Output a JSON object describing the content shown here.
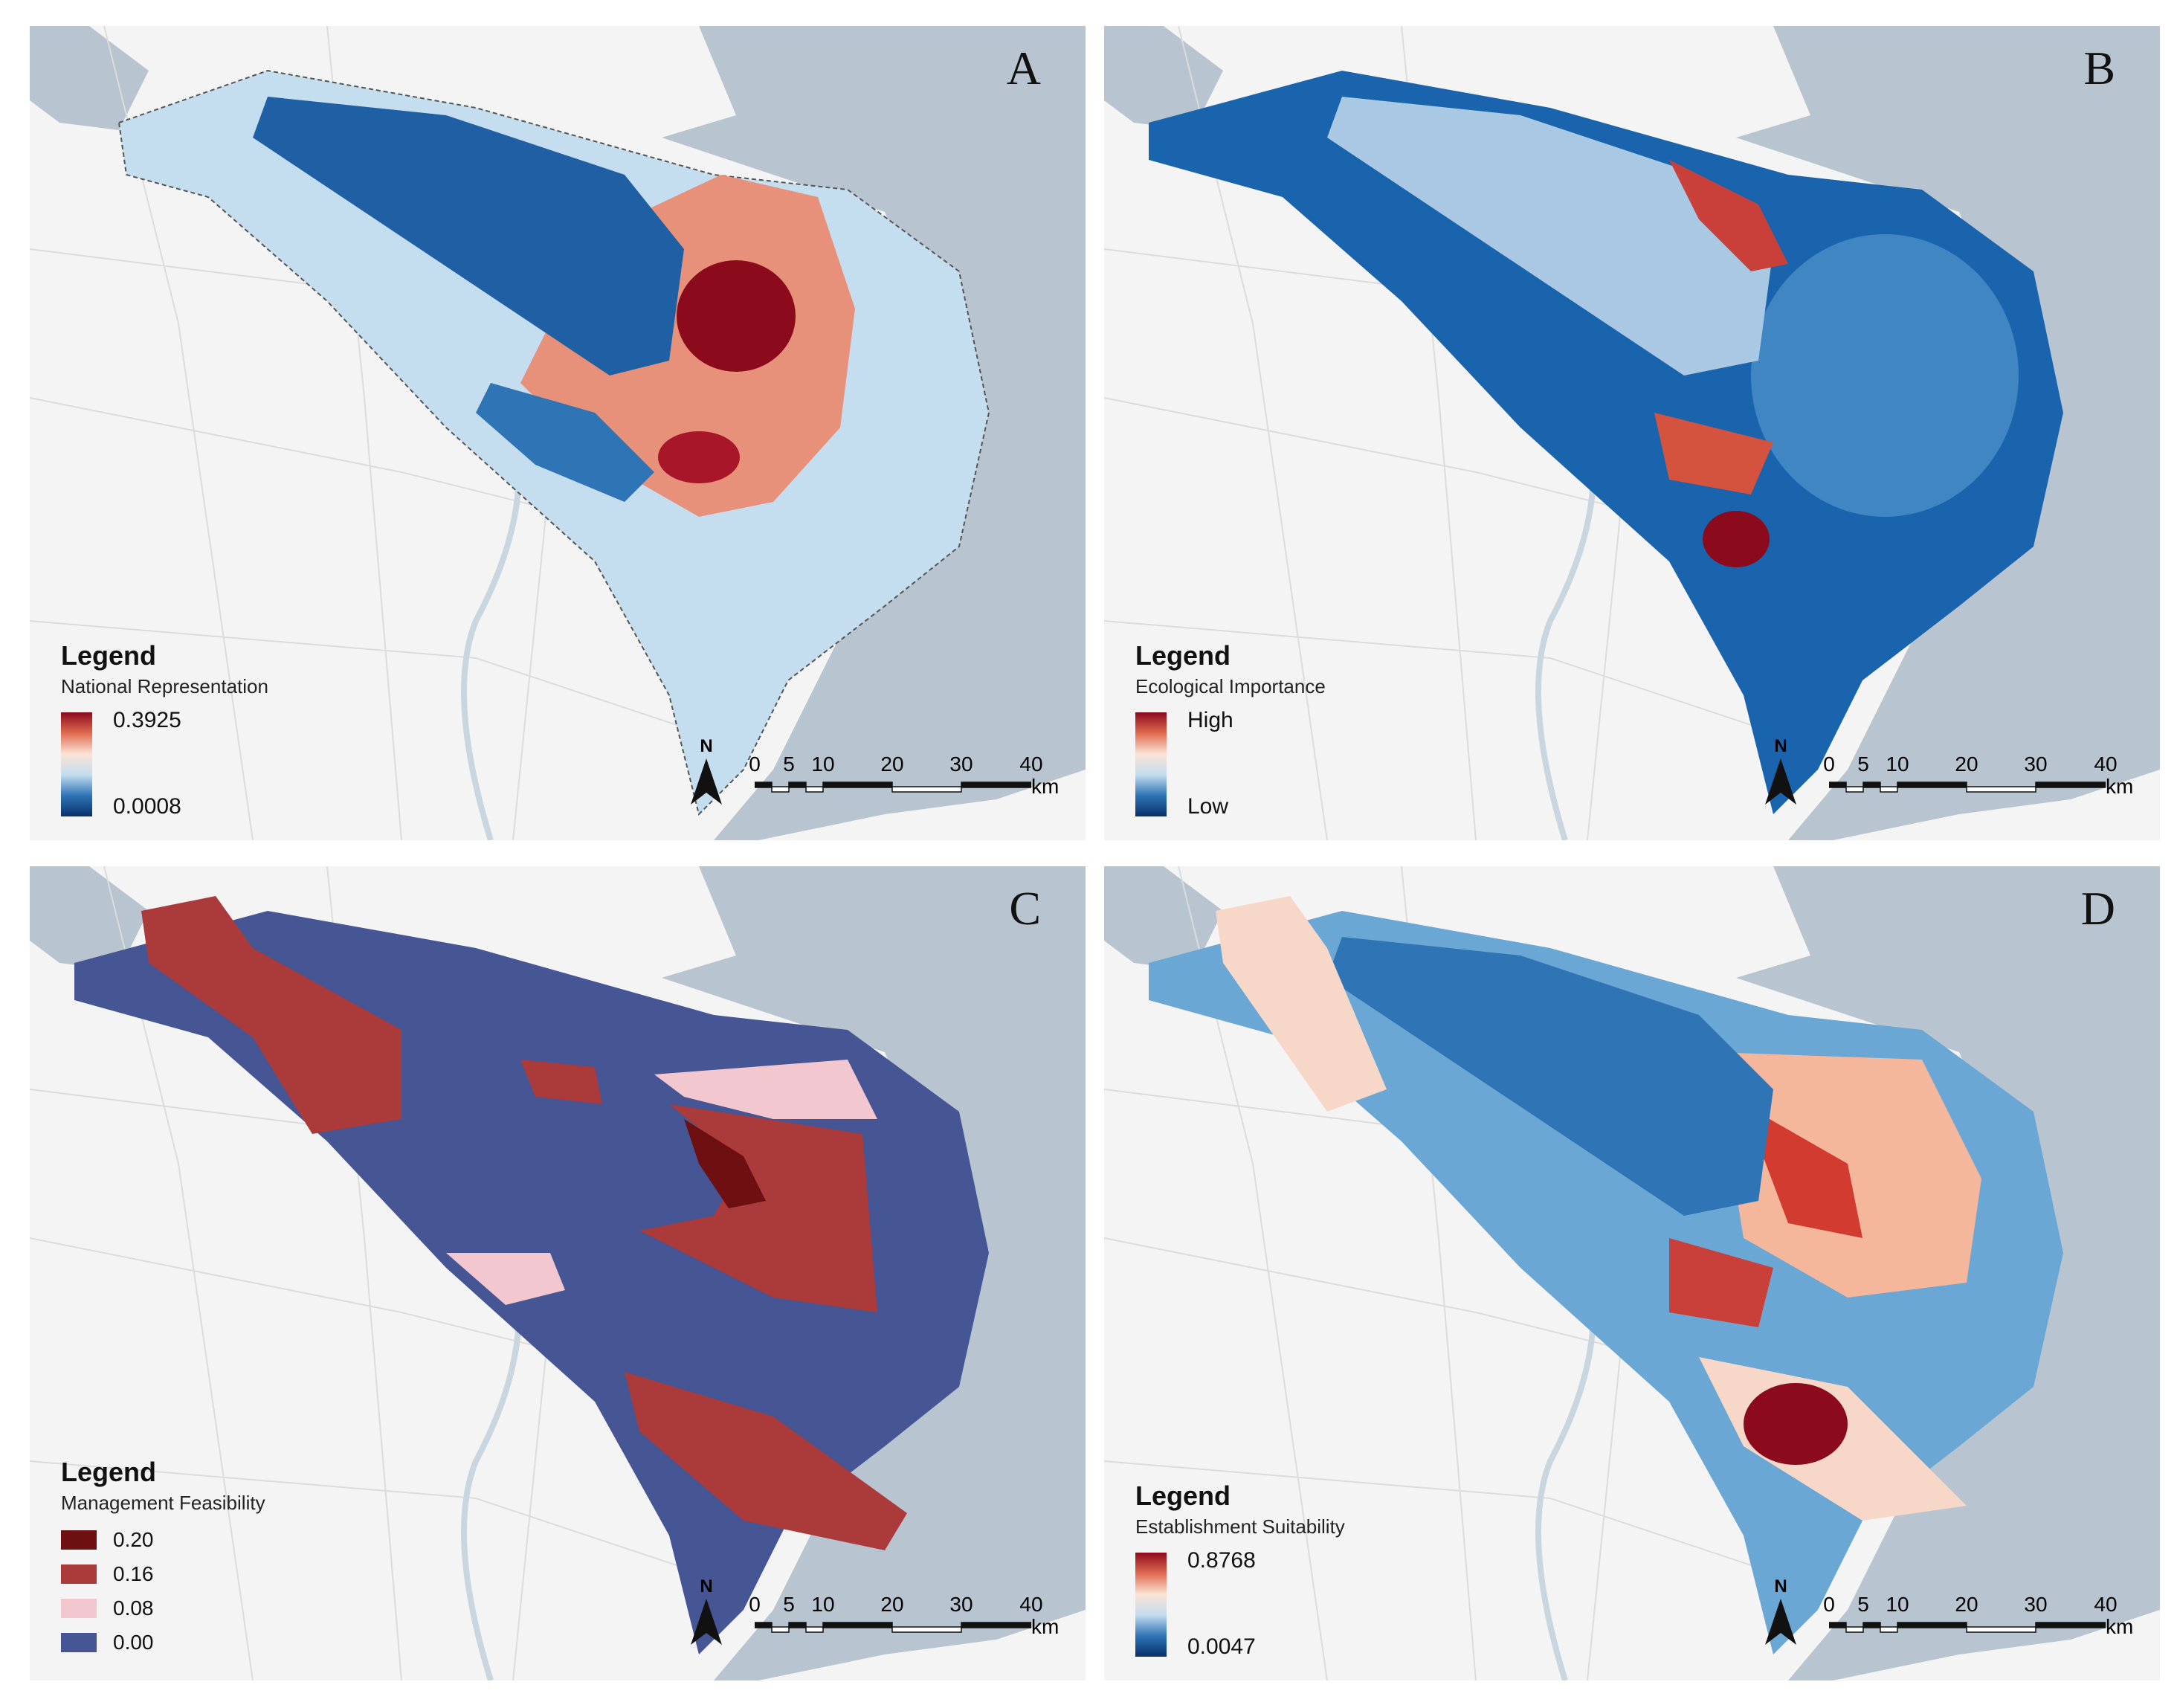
{
  "panels": [
    {
      "letter": "A",
      "legend_heading": "Legend",
      "legend_subtitle": "National Representation",
      "legend_type": "continuous",
      "legend_max_label": "0.3925",
      "legend_min_label": "0.0008",
      "colors": [
        "#08306b",
        "#2f74b5",
        "#c4ddef",
        "#fbe3d4",
        "#e06b50",
        "#8b0a1c"
      ]
    },
    {
      "letter": "B",
      "legend_heading": "Legend",
      "legend_subtitle": "Ecological Importance",
      "legend_type": "continuous",
      "legend_max_label": "High",
      "legend_min_label": "Low",
      "colors": [
        "#08306b",
        "#2f74b5",
        "#c4ddef",
        "#fbe3d4",
        "#e06b50",
        "#8b0a1c"
      ]
    },
    {
      "letter": "C",
      "legend_heading": "Legend",
      "legend_subtitle": "Management Feasibility",
      "legend_type": "classes",
      "classes": [
        {
          "label": "0.20",
          "color": "#6e0f12"
        },
        {
          "label": "0.16",
          "color": "#ab3a3a"
        },
        {
          "label": "0.08",
          "color": "#f2c7cf"
        },
        {
          "label": "0.00",
          "color": "#465594"
        }
      ]
    },
    {
      "letter": "D",
      "legend_heading": "Legend",
      "legend_subtitle": "Establishment Suitability",
      "legend_type": "continuous",
      "legend_max_label": "0.8768",
      "legend_min_label": "0.0047",
      "colors": [
        "#08306b",
        "#2f74b5",
        "#c4ddef",
        "#fbe3d4",
        "#e06b50",
        "#8b0a1c"
      ]
    }
  ],
  "north_label": "N",
  "scale_ticks": [
    "0",
    "5",
    "10",
    "20",
    "30",
    "40"
  ],
  "scale_unit": "km",
  "base_colors": {
    "sea": "#b8c5d0",
    "land": "#f4f4f4",
    "river": "#c9d6df"
  }
}
